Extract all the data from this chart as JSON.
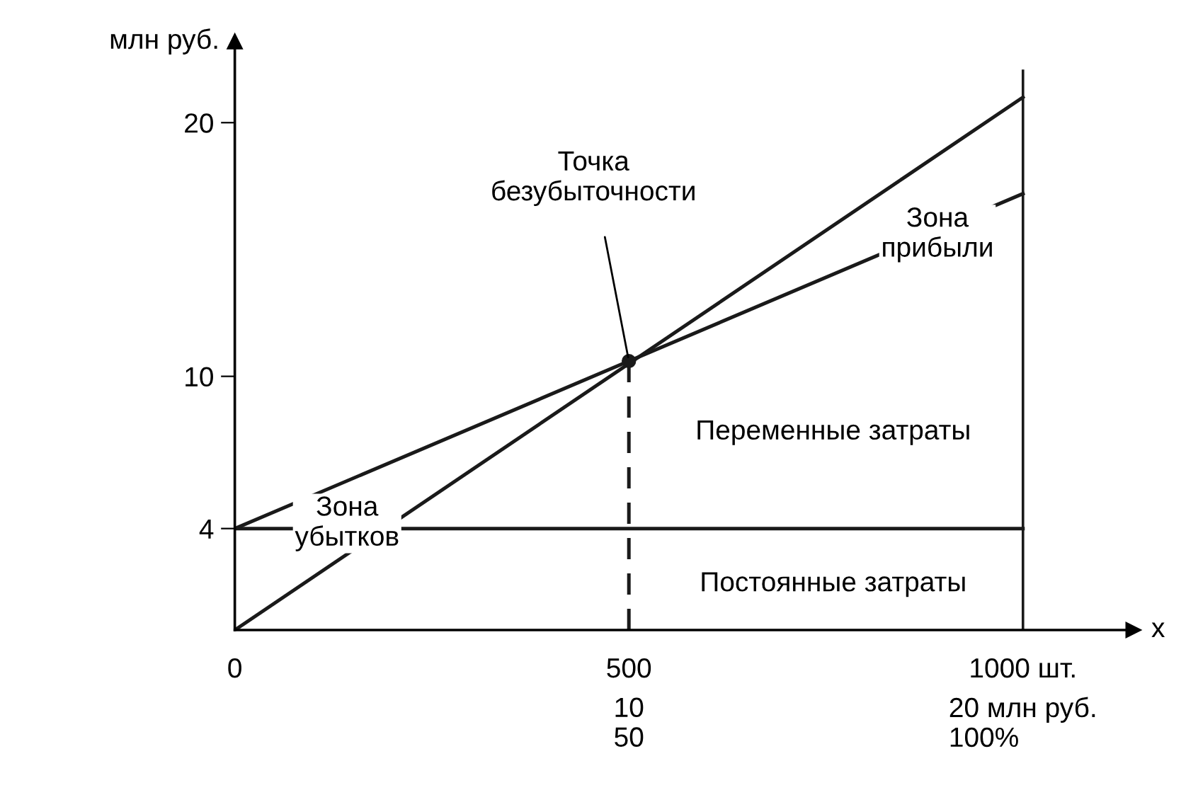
{
  "chart_data": {
    "type": "line",
    "xlabel": "x",
    "ylabel": "млн руб.",
    "xlim": [
      0,
      1140
    ],
    "ylim": [
      0,
      23.2
    ],
    "xticks": [
      0,
      500,
      {
        "value": 1000,
        "label": "1000 шт."
      }
    ],
    "yticks": [
      4,
      10,
      20
    ],
    "grid": false,
    "legend": false,
    "marker": "none",
    "line_style": "solid",
    "series": [
      {
        "color": "#1a1a1a",
        "x": [
          0,
          1000
        ],
        "values": [
          0,
          21
        ]
      },
      {
        "color": "#1a1a1a",
        "x": [
          0,
          1000
        ],
        "values": [
          4,
          17.2
        ]
      },
      {
        "color": "#1a1a1a",
        "x": [
          0,
          1000
        ],
        "values": [
          4,
          4
        ]
      },
      {
        "color": "#1a1a1a",
        "x": [
          500,
          500
        ],
        "values": [
          0,
          10.6
        ],
        "line_style": "dashed"
      },
      {
        "type": "scatter",
        "color": "#1a1a1a",
        "x": [
          500
        ],
        "values": [
          10.6
        ],
        "marker": "circle"
      }
    ],
    "ref_lines": [
      {
        "axis": "x",
        "value": 1000,
        "color": "#1a1a1a"
      }
    ],
    "annotations": [
      {
        "text": "Точка\nбезубыточности",
        "x": 500,
        "y": 10.6
      },
      "Зона\nприбыли",
      "Переменные затраты",
      "Зона\nубытков",
      "Постоянные затраты",
      "10\n50",
      "20 млн руб.\n100%"
    ]
  }
}
